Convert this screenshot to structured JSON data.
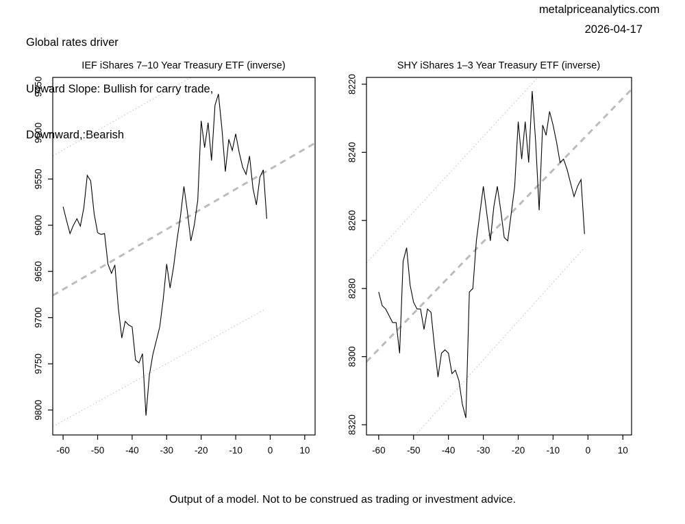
{
  "header": {
    "line1": "Global rates driver",
    "line2": "Upward Slope: Bullish for carry trade,",
    "line3": "Downward,:Bearish",
    "site": "metalpriceanalytics.com",
    "date": "2026-04-17"
  },
  "footer": {
    "disclaimer": "Output of a model. Not to be construed as trading or investment advice."
  },
  "colors": {
    "series": "#000000",
    "trend_dashed": "#bcbcbc",
    "band_dotted": "#c6c6c6",
    "text": "#000000",
    "background": "#ffffff"
  },
  "chart_data": [
    {
      "id": "ief",
      "type": "line",
      "title": "IEF iShares 7–10 Year Treasury ETF (inverse)",
      "xlabel": "",
      "ylabel": "",
      "grid": false,
      "legend": null,
      "y_axis_reversed": true,
      "xlim": [
        -63,
        13
      ],
      "ylim": [
        9440,
        9827
      ],
      "x_ticks": [
        -60,
        -50,
        -40,
        -30,
        -20,
        -10,
        0,
        10
      ],
      "y_ticks": [
        9450,
        9500,
        9550,
        9600,
        9650,
        9700,
        9750,
        9800
      ],
      "x_start": -60,
      "x_step": 1,
      "series_color": "#000000",
      "values": [
        9580,
        9595,
        9609,
        9600,
        9593,
        9601,
        9581,
        9546,
        9552,
        9588,
        9608,
        9610,
        9609,
        9642,
        9652,
        9643,
        9690,
        9722,
        9704,
        9708,
        9710,
        9746,
        9749,
        9739,
        9806,
        9762,
        9740,
        9725,
        9710,
        9680,
        9642,
        9668,
        9645,
        9616,
        9590,
        9558,
        9585,
        9617,
        9600,
        9573,
        9487,
        9516,
        9489,
        9530,
        9470,
        9458,
        9495,
        9542,
        9507,
        9519,
        9501,
        9521,
        9537,
        9545,
        9525,
        9560,
        9578,
        9548,
        9540,
        9593
      ],
      "ref_lines": [
        {
          "name": "trend-line",
          "style": "dashed",
          "color": "#bcbcbc",
          "x1": -63,
          "v1": 9676,
          "x2": 13,
          "v2": 9511
        },
        {
          "name": "upper-band-line",
          "style": "dotted",
          "color": "#c6c6c6",
          "x1": -63,
          "v1": 9525,
          "x2": -22.5,
          "v2": 9439
        },
        {
          "name": "lower-band-line",
          "style": "dotted",
          "color": "#c6c6c6",
          "x1": -63,
          "v1": 9818,
          "x2": -1.5,
          "v2": 9691
        }
      ]
    },
    {
      "id": "shy",
      "type": "line",
      "title": "SHY iShares 1–3 Year Treasury ETF (inverse)",
      "xlabel": "",
      "ylabel": "",
      "grid": false,
      "legend": null,
      "y_axis_reversed": true,
      "xlim": [
        -63.5,
        12.5
      ],
      "ylim": [
        8218,
        8323
      ],
      "x_ticks": [
        -60,
        -50,
        -40,
        -30,
        -20,
        -10,
        0,
        10
      ],
      "y_ticks": [
        8220,
        8240,
        8260,
        8280,
        8300,
        8320
      ],
      "x_start": -60,
      "x_step": 1,
      "series_color": "#000000",
      "values": [
        8281,
        8285,
        8286,
        8288,
        8290,
        8290,
        8299,
        8272,
        8268,
        8279,
        8284,
        8286,
        8286,
        8292,
        8286,
        8287,
        8297,
        8306,
        8299,
        8298,
        8299,
        8305,
        8304,
        8307,
        8314,
        8318,
        8281,
        8280,
        8266,
        8258,
        8250,
        8258,
        8266,
        8256,
        8250,
        8257,
        8265,
        8266,
        8258,
        8250,
        8231,
        8242,
        8231,
        8243,
        8222,
        8237,
        8257,
        8232,
        8235,
        8228,
        8232,
        8237,
        8243,
        8242,
        8245,
        8249,
        8253,
        8250,
        8248,
        8264
      ],
      "ref_lines": [
        {
          "name": "trend-line",
          "style": "dashed",
          "color": "#bcbcbc",
          "x1": -63.5,
          "v1": 8301.5,
          "x2": 12.5,
          "v2": 8221.5
        },
        {
          "name": "upper-band-line",
          "style": "dotted",
          "color": "#c6c6c6",
          "x1": -63.5,
          "v1": 8272.5,
          "x2": -13,
          "v2": 8216.5
        },
        {
          "name": "lower-band-line",
          "style": "dotted",
          "color": "#c6c6c6",
          "x1": -63.5,
          "v1": 8339,
          "x2": -1,
          "v2": 8268
        }
      ]
    }
  ]
}
